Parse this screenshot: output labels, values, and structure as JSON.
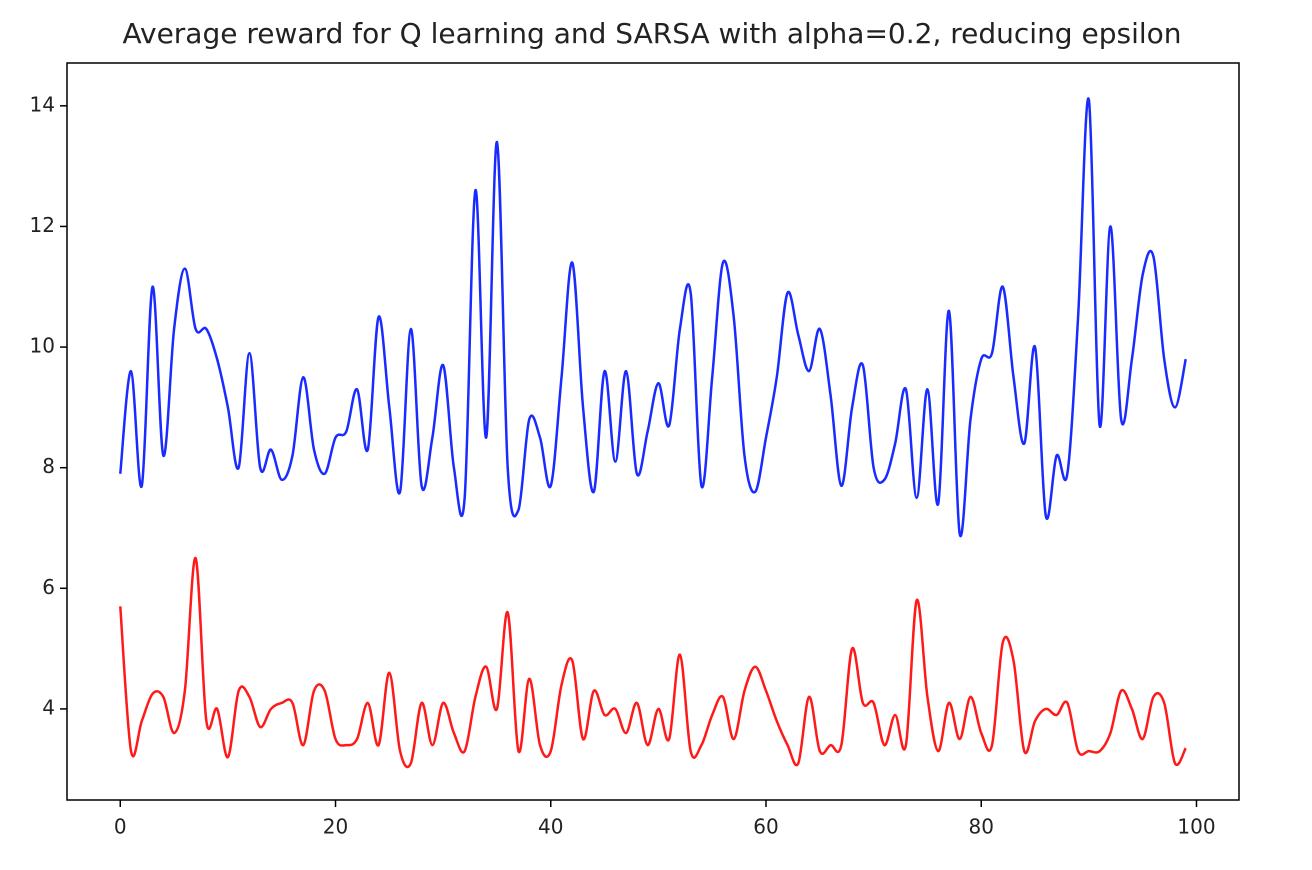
{
  "chart_data": {
    "type": "line",
    "title": "Average reward for Q learning and SARSA with alpha=0.2, reducing epsilon",
    "x": [
      0,
      1,
      2,
      3,
      4,
      5,
      6,
      7,
      8,
      9,
      10,
      11,
      12,
      13,
      14,
      15,
      16,
      17,
      18,
      19,
      20,
      21,
      22,
      23,
      24,
      25,
      26,
      27,
      28,
      29,
      30,
      31,
      32,
      33,
      34,
      35,
      36,
      37,
      38,
      39,
      40,
      41,
      42,
      43,
      44,
      45,
      46,
      47,
      48,
      49,
      50,
      51,
      52,
      53,
      54,
      55,
      56,
      57,
      58,
      59,
      60,
      61,
      62,
      63,
      64,
      65,
      66,
      67,
      68,
      69,
      70,
      71,
      72,
      73,
      74,
      75,
      76,
      77,
      78,
      79,
      80,
      81,
      82,
      83,
      84,
      85,
      86,
      87,
      88,
      89,
      90,
      91,
      92,
      93,
      94,
      95,
      96,
      97,
      98,
      99
    ],
    "series": [
      {
        "color": "#1a2bff",
        "values": [
          7.9,
          9.6,
          7.7,
          11.0,
          8.2,
          10.3,
          11.3,
          10.3,
          10.3,
          9.8,
          9.0,
          8.0,
          9.9,
          8.0,
          8.3,
          7.8,
          8.2,
          9.5,
          8.3,
          7.9,
          8.5,
          8.6,
          9.3,
          8.3,
          10.5,
          9.0,
          7.6,
          10.3,
          7.7,
          8.5,
          9.7,
          8.0,
          7.5,
          12.6,
          8.5,
          13.4,
          8.0,
          7.3,
          8.8,
          8.5,
          7.7,
          9.5,
          11.4,
          9.0,
          7.6,
          9.6,
          8.1,
          9.6,
          7.9,
          8.6,
          9.4,
          8.7,
          10.3,
          10.9,
          7.7,
          9.5,
          11.4,
          10.5,
          8.2,
          7.6,
          8.5,
          9.5,
          10.9,
          10.2,
          9.6,
          10.3,
          9.2,
          7.7,
          9.0,
          9.7,
          8.0,
          7.8,
          8.4,
          9.3,
          7.5,
          9.3,
          7.4,
          10.6,
          6.9,
          8.8,
          9.8,
          9.9,
          11.0,
          9.5,
          8.4,
          10.0,
          7.2,
          8.2,
          7.9,
          10.5,
          14.1,
          8.7,
          12.0,
          8.8,
          9.8,
          11.2,
          11.5,
          9.8,
          9.0,
          9.8
        ]
      },
      {
        "color": "#ff1a1a",
        "values": [
          5.7,
          3.3,
          3.8,
          4.25,
          4.2,
          3.6,
          4.3,
          6.5,
          3.8,
          4.0,
          3.2,
          4.3,
          4.2,
          3.7,
          4.0,
          4.1,
          4.1,
          3.4,
          4.3,
          4.3,
          3.5,
          3.4,
          3.5,
          4.1,
          3.4,
          4.6,
          3.3,
          3.1,
          4.1,
          3.4,
          4.1,
          3.6,
          3.3,
          4.2,
          4.7,
          4.0,
          5.6,
          3.3,
          4.5,
          3.4,
          3.3,
          4.4,
          4.8,
          3.5,
          4.3,
          3.9,
          4.0,
          3.6,
          4.1,
          3.4,
          4.0,
          3.5,
          4.9,
          3.3,
          3.4,
          3.9,
          4.2,
          3.5,
          4.3,
          4.7,
          4.3,
          3.8,
          3.4,
          3.1,
          4.2,
          3.3,
          3.4,
          3.4,
          5.0,
          4.1,
          4.1,
          3.4,
          3.9,
          3.4,
          5.8,
          4.2,
          3.3,
          4.1,
          3.5,
          4.2,
          3.6,
          3.4,
          5.1,
          4.8,
          3.3,
          3.8,
          4.0,
          3.9,
          4.1,
          3.3,
          3.3,
          3.3,
          3.6,
          4.3,
          4.0,
          3.5,
          4.2,
          4.1,
          3.1,
          3.35
        ]
      }
    ],
    "xlim": [
      -4.95,
      103.95
    ],
    "xticks": [
      0,
      20,
      40,
      60,
      80,
      100
    ],
    "ylim": [
      2.49,
      14.71
    ],
    "yticks": [
      4,
      6,
      8,
      10,
      12,
      14
    ]
  }
}
